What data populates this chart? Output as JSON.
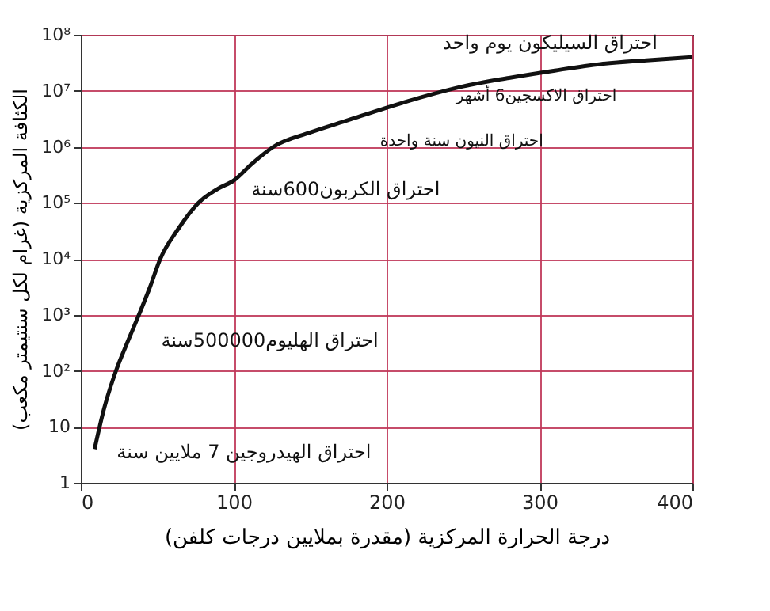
{
  "chart_data": {
    "type": "line",
    "xlabel": "درجة الحرارة المركزية (مقدرة بملايين درجات كلفن)",
    "ylabel": "الكثافة المركزية (غرام لكل سنتيمتر مكعب)",
    "x": [
      9,
      15,
      23,
      30,
      38,
      45,
      52,
      64,
      77,
      90,
      100,
      112,
      126,
      150,
      175,
      200,
      225,
      250,
      280,
      310,
      340,
      370,
      400
    ],
    "series": [
      {
        "color": "#111111",
        "values": [
          4,
          20,
          100,
          300,
          1000,
          3000,
          10000,
          35000,
          100000,
          180000,
          250000,
          500000,
          1000000,
          1800000,
          3000000,
          5000000,
          8000000,
          12000000,
          17000000,
          23000000,
          30000000,
          35000000,
          40000000
        ]
      }
    ],
    "log": "y",
    "grid": true,
    "marker": "none",
    "line_style": "solid",
    "xlim": [
      0,
      400
    ],
    "xticks": [
      0,
      100,
      200,
      300,
      400
    ],
    "ylim": [
      1,
      100000000
    ],
    "yticks": [
      {
        "value": 1,
        "label": "1"
      },
      {
        "value": 10,
        "label": "10"
      },
      {
        "value": 100,
        "label": "10²"
      },
      {
        "value": 1000,
        "label": "10³"
      },
      {
        "value": 10000,
        "label": "10⁴"
      },
      {
        "value": 100000,
        "label": "10⁵"
      },
      {
        "value": 1000000,
        "label": "10⁶"
      },
      {
        "value": 10000000,
        "label": "10⁷"
      },
      {
        "value": 100000000,
        "label": "10⁸"
      }
    ],
    "annotations": [
      {
        "text": "احتراق السيليكون يوم واحد",
        "x": 400,
        "y": 40000000
      },
      {
        "text": "احتراق الاكسجين6 أشهر",
        "x": 233,
        "y": 10000000
      },
      {
        "text": "احتراق النيون سنة واحدة",
        "x": 175,
        "y": 3000000
      },
      {
        "text": "احتراق الكربون600سنة",
        "x": 97,
        "y": 200000
      },
      {
        "text": "احتراق الهليوم500000سنة",
        "x": 36,
        "y": 450
      },
      {
        "text": "احتراق الهيدروجين 7 ملايين سنة",
        "x": 9,
        "y": 4
      }
    ]
  }
}
